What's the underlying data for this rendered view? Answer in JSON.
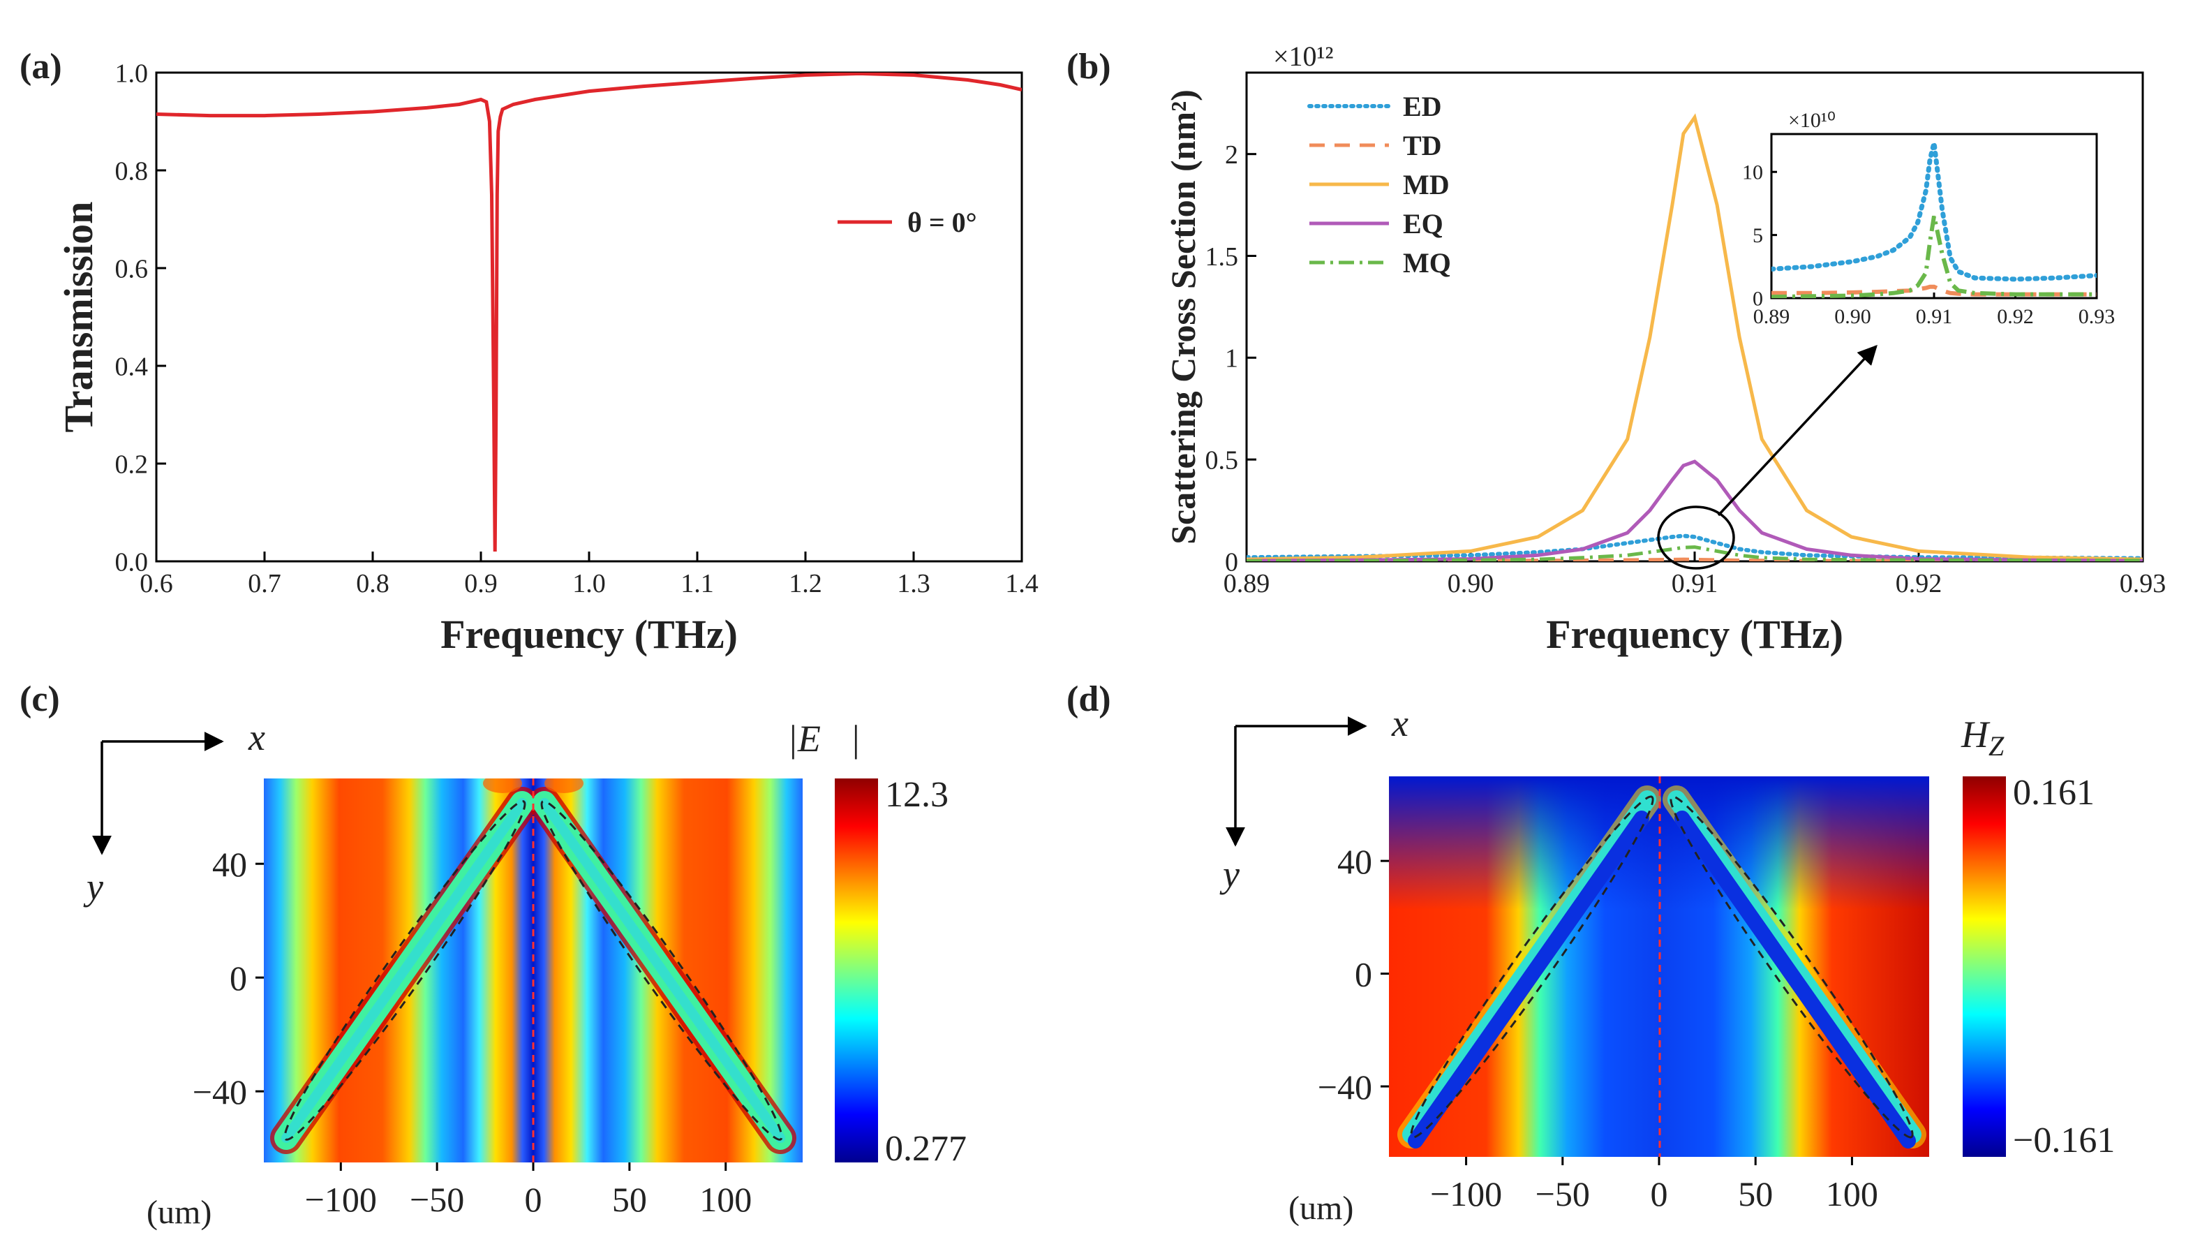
{
  "panels": {
    "a": {
      "label": "(a)",
      "chart_data": {
        "type": "line",
        "xlabel": "Frequency (THz)",
        "ylabel": "Transmission",
        "xlim": [
          0.6,
          1.4
        ],
        "ylim": [
          0.0,
          1.0
        ],
        "xticks": [
          "0.6",
          "0.7",
          "0.8",
          "0.9",
          "1.0",
          "1.1",
          "1.2",
          "1.3",
          "1.4"
        ],
        "yticks": [
          "0.0",
          "0.2",
          "0.4",
          "0.6",
          "0.8",
          "1.0"
        ],
        "series": [
          {
            "name": "θ = 0°",
            "color": "#e0262b",
            "x": [
              0.6,
              0.65,
              0.7,
              0.75,
              0.8,
              0.85,
              0.88,
              0.9,
              0.905,
              0.908,
              0.91,
              0.912,
              0.913,
              0.914,
              0.915,
              0.916,
              0.918,
              0.92,
              0.93,
              0.95,
              1.0,
              1.05,
              1.1,
              1.15,
              1.2,
              1.25,
              1.3,
              1.35,
              1.38,
              1.4
            ],
            "y": [
              0.915,
              0.912,
              0.912,
              0.915,
              0.92,
              0.928,
              0.935,
              0.945,
              0.94,
              0.9,
              0.75,
              0.3,
              0.02,
              0.3,
              0.75,
              0.88,
              0.91,
              0.925,
              0.935,
              0.945,
              0.962,
              0.972,
              0.98,
              0.988,
              0.995,
              0.998,
              0.995,
              0.985,
              0.975,
              0.965
            ]
          }
        ],
        "legend": "right"
      }
    },
    "b": {
      "label": "(b)",
      "chart_data": {
        "type": "line",
        "xlabel": "Frequency (THz)",
        "ylabel": "Scattering Cross Section (nm²)",
        "multiplier": "×10¹²",
        "xlim": [
          0.89,
          0.93
        ],
        "ylim": [
          0,
          2.4
        ],
        "xticks": [
          "0.89",
          "0.90",
          "0.91",
          "0.92",
          "0.93"
        ],
        "yticks": [
          "0",
          "0.5",
          "1",
          "1.5",
          "2"
        ],
        "x": [
          0.89,
          0.895,
          0.9,
          0.903,
          0.905,
          0.907,
          0.908,
          0.909,
          0.9095,
          0.91,
          0.911,
          0.912,
          0.913,
          0.915,
          0.917,
          0.92,
          0.925,
          0.93
        ],
        "series": [
          {
            "name": "ED",
            "color": "#2f9fd8",
            "style": "dotted",
            "values": [
              0.02,
              0.025,
              0.03,
              0.045,
              0.06,
              0.09,
              0.105,
              0.12,
              0.125,
              0.12,
              0.09,
              0.06,
              0.045,
              0.03,
              0.025,
              0.02,
              0.018,
              0.015
            ]
          },
          {
            "name": "TD",
            "color": "#f08c5a",
            "style": "dashed",
            "values": [
              0.002,
              0.002,
              0.003,
              0.004,
              0.005,
              0.007,
              0.008,
              0.009,
              0.01,
              0.009,
              0.007,
              0.005,
              0.004,
              0.003,
              0.003,
              0.002,
              0.002,
              0.002
            ]
          },
          {
            "name": "MD",
            "color": "#f7b84a",
            "style": "solid",
            "values": [
              0.01,
              0.02,
              0.05,
              0.12,
              0.25,
              0.6,
              1.1,
              1.75,
              2.1,
              2.18,
              1.75,
              1.1,
              0.6,
              0.25,
              0.12,
              0.05,
              0.02,
              0.01
            ]
          },
          {
            "name": "EQ",
            "color": "#b05ab8",
            "style": "solid",
            "values": [
              0.003,
              0.006,
              0.012,
              0.03,
              0.06,
              0.14,
              0.25,
              0.4,
              0.47,
              0.49,
              0.4,
              0.25,
              0.14,
              0.06,
              0.03,
              0.012,
              0.006,
              0.003
            ]
          },
          {
            "name": "MQ",
            "color": "#6ab84a",
            "style": "dashdot",
            "values": [
              0.002,
              0.003,
              0.006,
              0.01,
              0.018,
              0.03,
              0.045,
              0.06,
              0.068,
              0.07,
              0.05,
              0.03,
              0.018,
              0.01,
              0.008,
              0.006,
              0.005,
              0.004
            ]
          }
        ],
        "annotation": "circled region at 0.91 THz magnified in inset",
        "inset": {
          "multiplier": "×10¹⁰",
          "xlim": [
            0.89,
            0.93
          ],
          "ylim": [
            0,
            13
          ],
          "xticks": [
            "0.89",
            "0.90",
            "0.91",
            "0.92",
            "0.93"
          ],
          "yticks": [
            "0",
            "5",
            "10"
          ],
          "x": [
            0.89,
            0.895,
            0.9,
            0.903,
            0.905,
            0.907,
            0.908,
            0.909,
            0.9095,
            0.91,
            0.911,
            0.912,
            0.913,
            0.915,
            0.92,
            0.925,
            0.93
          ],
          "series": [
            {
              "name": "ED",
              "color": "#2f9fd8",
              "style": "dotted",
              "values": [
                2.3,
                2.5,
                2.9,
                3.3,
                3.8,
                4.8,
                6.0,
                8.5,
                11.0,
                12.3,
                7.0,
                3.2,
                2.1,
                1.6,
                1.5,
                1.6,
                1.8
              ]
            },
            {
              "name": "TD",
              "color": "#f08c5a",
              "style": "dashed",
              "values": [
                0.4,
                0.4,
                0.45,
                0.5,
                0.55,
                0.6,
                0.7,
                0.8,
                0.9,
                0.9,
                0.6,
                0.4,
                0.35,
                0.3,
                0.3,
                0.3,
                0.3
              ]
            },
            {
              "name": "MQ",
              "color": "#6ab84a",
              "style": "dashdot",
              "values": [
                0.1,
                0.15,
                0.2,
                0.3,
                0.4,
                0.6,
                1.0,
                2.0,
                4.5,
                6.5,
                3.5,
                1.2,
                0.6,
                0.4,
                0.3,
                0.3,
                0.3
              ]
            }
          ]
        }
      }
    },
    "c": {
      "label": "(c)",
      "axis_x": "x",
      "axis_y": "y",
      "unit": "(um)",
      "colorbar_title": "|E⃗|",
      "colorbar_max": "12.3",
      "colorbar_min": "0.277",
      "chart_data": {
        "type": "heatmap",
        "quantity": "|E|",
        "xlim": [
          -140,
          140
        ],
        "ylim": [
          -65,
          70
        ],
        "xticks": [
          "−100",
          "−50",
          "0",
          "50",
          "100"
        ],
        "yticks": [
          "40",
          "0",
          "−40"
        ],
        "vmin": 0.277,
        "vmax": 12.3
      }
    },
    "d": {
      "label": "(d)",
      "axis_x": "x",
      "axis_y": "y",
      "unit": "(um)",
      "colorbar_title": "H",
      "colorbar_title_sub": "Z",
      "colorbar_max": "0.161",
      "colorbar_min": "−0.161",
      "chart_data": {
        "type": "heatmap",
        "quantity": "Hz",
        "xlim": [
          -140,
          140
        ],
        "ylim": [
          -65,
          70
        ],
        "xticks": [
          "−100",
          "−50",
          "0",
          "50",
          "100"
        ],
        "yticks": [
          "40",
          "0",
          "−40"
        ],
        "vmin": -0.161,
        "vmax": 0.161
      }
    }
  },
  "colors": {
    "jet_dark_blue": "#00008f",
    "jet_blue": "#0040ff",
    "jet_cyan": "#00ffff",
    "jet_yellow": "#ffff00",
    "jet_red": "#ff2000",
    "jet_dark_red": "#8f0000"
  }
}
